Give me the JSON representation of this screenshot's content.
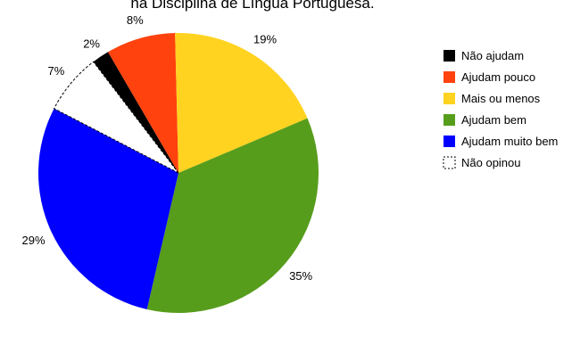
{
  "chart_data": {
    "type": "pie",
    "title": "na Disciplina de Língua Portuguesa.",
    "legend_position": "right",
    "slices": [
      {
        "label": "Não ajudam",
        "value": 2,
        "display": "2%",
        "color": "#000000"
      },
      {
        "label": "Ajudam pouco",
        "value": 8,
        "display": "8%",
        "color": "#ff420e"
      },
      {
        "label": "Mais ou menos",
        "value": 19,
        "display": "19%",
        "color": "#ffd320"
      },
      {
        "label": "Ajudam bem",
        "value": 35,
        "display": "35%",
        "color": "#579d1c"
      },
      {
        "label": "Ajudam muito bem",
        "value": 29,
        "display": "29%",
        "color": "#0000ff"
      },
      {
        "label": "Não opinou",
        "value": 7,
        "display": "7%",
        "color": "#ffffff",
        "dashed": true
      }
    ]
  }
}
